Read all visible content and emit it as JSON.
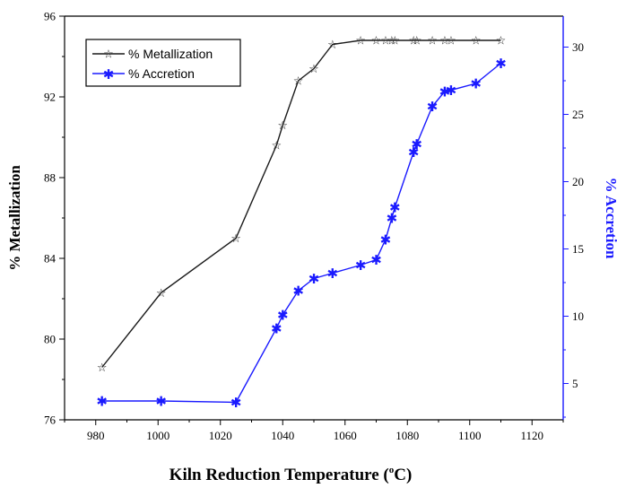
{
  "chart_data": {
    "type": "line",
    "xlabel_main": "Kiln Reduction Temperature (",
    "xlabel_degree": "o",
    "xlabel_unit": "C)",
    "ylabel_left": "% Metallization",
    "ylabel_right": "% Accretion",
    "xlim": [
      970,
      1130
    ],
    "ylim_left": [
      76,
      96
    ],
    "ylim_right": [
      2.3,
      32.3
    ],
    "x_ticks": [
      980,
      1000,
      1020,
      1040,
      1060,
      1080,
      1100,
      1120
    ],
    "y_ticks_left": [
      76,
      80,
      84,
      88,
      92,
      96
    ],
    "y_ticks_right": [
      5,
      10,
      15,
      20,
      25,
      30
    ],
    "grid": false,
    "legend_position": "top-left",
    "series": [
      {
        "name": "% Metallization",
        "axis": "left",
        "color": "#1a1a1a",
        "marker": "star",
        "x": [
          982,
          1001,
          1025,
          1038,
          1040,
          1045,
          1050,
          1056,
          1065,
          1070,
          1073,
          1075,
          1076,
          1082,
          1083,
          1088,
          1092,
          1094,
          1102,
          1110
        ],
        "y": [
          78.6,
          82.3,
          85.0,
          89.6,
          90.6,
          92.8,
          93.4,
          94.6,
          94.8,
          94.8,
          94.8,
          94.8,
          94.8,
          94.8,
          94.8,
          94.8,
          94.8,
          94.8,
          94.8,
          94.8
        ]
      },
      {
        "name": "% Accretion",
        "axis": "right",
        "color": "#1a1aff",
        "marker": "asterisk",
        "x": [
          982,
          1001,
          1025,
          1038,
          1040,
          1045,
          1050,
          1056,
          1065,
          1070,
          1073,
          1075,
          1076,
          1082,
          1083,
          1088,
          1092,
          1094,
          1102,
          1110
        ],
        "y": [
          3.7,
          3.7,
          3.6,
          9.1,
          10.1,
          11.9,
          12.8,
          13.2,
          13.8,
          14.2,
          15.7,
          17.3,
          18.1,
          22.2,
          22.8,
          25.6,
          26.7,
          26.8,
          27.3,
          28.8
        ]
      }
    ]
  }
}
